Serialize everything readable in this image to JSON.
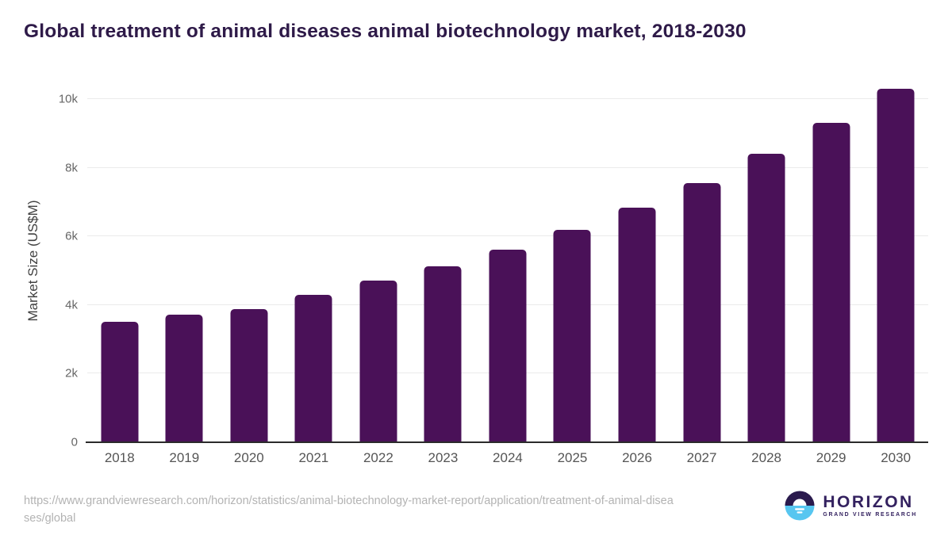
{
  "title": "Global treatment of animal diseases animal biotechnology market, 2018-2030",
  "chart_data": {
    "type": "bar",
    "title": "Global treatment of animal diseases animal biotechnology market, 2018-2030",
    "categories": [
      "2018",
      "2019",
      "2020",
      "2021",
      "2022",
      "2023",
      "2024",
      "2025",
      "2026",
      "2027",
      "2028",
      "2029",
      "2030"
    ],
    "values": [
      3520,
      3730,
      3890,
      4300,
      4720,
      5140,
      5610,
      6180,
      6830,
      7560,
      8420,
      9300,
      10310
    ],
    "xlabel": "",
    "ylabel": "Market Size (US$M)",
    "ylim": [
      0,
      10580
    ],
    "yticks": [
      {
        "value": 0,
        "label": "0"
      },
      {
        "value": 2000,
        "label": "2k"
      },
      {
        "value": 4000,
        "label": "4k"
      },
      {
        "value": 6000,
        "label": "6k"
      },
      {
        "value": 8000,
        "label": "8k"
      },
      {
        "value": 10000,
        "label": "10k"
      }
    ],
    "gridline_values": [
      2000,
      4000,
      6000,
      8000,
      10000
    ],
    "grid": true,
    "legend": "none",
    "bar_color": "#4a1158"
  },
  "colors": {
    "background": "#ffffff",
    "title_text": "#2e1a48",
    "bar": "#4a1158",
    "axis_line": "#2b2b2b",
    "gridline": "#ebebeb",
    "tick_text": "#666666",
    "xlabel_text": "#555555",
    "source_text": "#b3b3b3",
    "logo_dark": "#2a1a4d",
    "logo_blue": "#57c6f0"
  },
  "footer": {
    "source_url_lines": [
      "https://www.grandviewresearch.com/horizon/statistics/animal-biotechnology-market-report/application/treatment-of-animal-disea",
      "ses/global"
    ],
    "logo": {
      "name": "HORIZON",
      "subtitle": "GRAND VIEW RESEARCH"
    }
  }
}
